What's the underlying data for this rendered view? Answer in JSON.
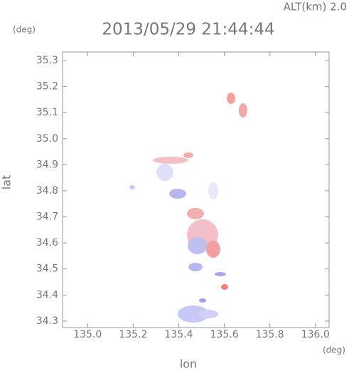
{
  "chart_data": {
    "type": "map",
    "title": "2013/05/29 21:44:44",
    "altitude_label": "ALT(km) 2.0",
    "x_unit": "(deg)",
    "y_unit": "(deg)",
    "x_label": "lon",
    "y_label": "lat",
    "xlim": [
      134.89,
      136.06
    ],
    "ylim": [
      34.275,
      35.333
    ],
    "xticks": [
      {
        "value": 135.0,
        "label": "135.0"
      },
      135.2,
      135.4,
      135.6,
      135.8,
      {
        "value": 136.0,
        "label": "136.0"
      }
    ],
    "yticks": [
      34.3,
      34.4,
      34.5,
      34.6,
      34.7,
      34.8,
      34.9,
      {
        "value": 35.0,
        "label": "35.0"
      },
      35.1,
      35.2,
      35.3
    ]
  }
}
